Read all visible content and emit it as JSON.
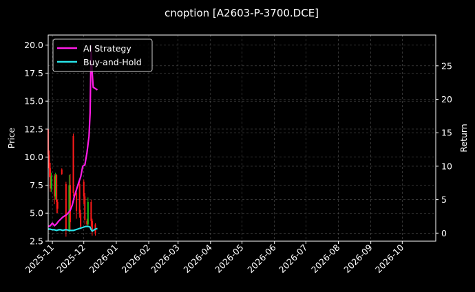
{
  "chart_data": {
    "type": "line",
    "title": "cnoption [A2603-P-3700.DCE]",
    "ylabel": "Price",
    "y2label": "Return",
    "ylim": [
      2.5,
      20.9
    ],
    "y2lim": [
      -1.2,
      29.6
    ],
    "xlim": [
      "2025-10-28",
      "2026-11-02"
    ],
    "yticks": [
      "2.5",
      "5.0",
      "7.5",
      "10.0",
      "12.5",
      "15.0",
      "17.5",
      "20.0"
    ],
    "y2ticks": [
      "0",
      "5",
      "10",
      "15",
      "20",
      "25"
    ],
    "xticks": [
      "2025-11",
      "2025-12",
      "2026-01",
      "2026-02",
      "2026-03",
      "2026-04",
      "2026-05",
      "2026-06",
      "2026-07",
      "2026-08",
      "2026-09",
      "2026-10"
    ],
    "grid": true,
    "legend_position": "top-left",
    "colors": {
      "background": "#000000",
      "ai_strategy": "#ff1ce6",
      "buy_and_hold": "#28e4e9",
      "candle_up": "#17c917",
      "candle_down": "#ff1a1a",
      "grid": "#555555"
    },
    "candles": [
      {
        "date": "2025-10-28",
        "open": 12.5,
        "close": 10.2,
        "high": 12.6,
        "low": 9.8
      },
      {
        "date": "2025-10-29",
        "open": 10.2,
        "close": 9.0,
        "high": 10.6,
        "low": 8.2
      },
      {
        "date": "2025-10-30",
        "open": 9.0,
        "close": 7.2,
        "high": 9.5,
        "low": 6.9
      },
      {
        "date": "2025-10-31",
        "open": 7.2,
        "close": 8.3,
        "high": 8.6,
        "low": 6.9
      },
      {
        "date": "2025-11-03",
        "open": 8.3,
        "close": 6.5,
        "high": 8.5,
        "low": 5.8
      },
      {
        "date": "2025-11-04",
        "open": 6.5,
        "close": 8.4,
        "high": 8.6,
        "low": 6.2
      },
      {
        "date": "2025-11-05",
        "open": 8.4,
        "close": 6.0,
        "high": 8.5,
        "low": 5.0
      },
      {
        "date": "2025-11-06",
        "open": 6.0,
        "close": 5.4,
        "high": 6.2,
        "low": 5.0
      },
      {
        "date": "2025-11-10",
        "open": 8.9,
        "close": 8.5,
        "high": 9.0,
        "low": 8.4
      },
      {
        "date": "2025-11-14",
        "open": 7.6,
        "close": 3.4,
        "high": 7.8,
        "low": 2.9
      },
      {
        "date": "2025-11-17",
        "open": 3.4,
        "close": 7.5,
        "high": 8.4,
        "low": 3.3
      },
      {
        "date": "2025-11-18",
        "open": 7.5,
        "close": 4.2,
        "high": 8.5,
        "low": 3.5
      },
      {
        "date": "2025-11-21",
        "open": 11.9,
        "close": 6.8,
        "high": 12.1,
        "low": 6.5
      },
      {
        "date": "2025-11-24",
        "open": 6.8,
        "close": 5.2,
        "high": 7.0,
        "low": 4.5
      },
      {
        "date": "2025-11-27",
        "open": 7.6,
        "close": 5.0,
        "high": 8.0,
        "low": 4.6
      },
      {
        "date": "2025-11-28",
        "open": 5.0,
        "close": 3.8,
        "high": 5.3,
        "low": 3.6
      },
      {
        "date": "2025-12-01",
        "open": 7.8,
        "close": 6.5,
        "high": 8.0,
        "low": 5.8
      },
      {
        "date": "2025-12-02",
        "open": 6.5,
        "close": 4.4,
        "high": 6.8,
        "low": 4.0
      },
      {
        "date": "2025-12-04",
        "open": 4.3,
        "close": 4.0,
        "high": 4.5,
        "low": 3.9
      },
      {
        "date": "2025-12-05",
        "open": 4.0,
        "close": 6.0,
        "high": 6.4,
        "low": 3.9
      },
      {
        "date": "2025-12-08",
        "open": 6.0,
        "close": 4.3,
        "high": 6.2,
        "low": 3.8
      },
      {
        "date": "2025-12-09",
        "open": 4.3,
        "close": 3.3,
        "high": 4.5,
        "low": 3.0
      },
      {
        "date": "2025-12-12",
        "open": 4.0,
        "close": 3.2,
        "high": 4.1,
        "low": 3.0
      }
    ],
    "series": [
      {
        "name": "AI Strategy",
        "color": "#ff1ce6",
        "x": [
          "2025-10-28",
          "2025-10-30",
          "2025-11-01",
          "2025-11-03",
          "2025-11-05",
          "2025-11-07",
          "2025-11-09",
          "2025-11-11",
          "2025-11-13",
          "2025-11-15",
          "2025-11-16",
          "2025-11-18",
          "2025-11-20",
          "2025-11-22",
          "2025-11-24",
          "2025-11-26",
          "2025-11-28",
          "2025-11-30",
          "2025-12-02",
          "2025-12-04",
          "2025-12-06",
          "2025-12-07",
          "2025-12-08",
          "2025-12-09",
          "2025-12-10",
          "2025-12-12",
          "2025-12-14"
        ],
        "values": [
          1.0,
          1.1,
          1.5,
          1.1,
          1.4,
          1.8,
          2.1,
          2.4,
          2.6,
          2.8,
          3.0,
          3.4,
          4.2,
          5.5,
          6.5,
          7.5,
          8.4,
          10.0,
          10.2,
          12.0,
          14.5,
          18.0,
          28.0,
          24.0,
          21.8,
          21.6,
          21.4
        ]
      },
      {
        "name": "Buy-and-Hold",
        "color": "#28e4e9",
        "x": [
          "2025-10-28",
          "2025-10-30",
          "2025-11-01",
          "2025-11-03",
          "2025-11-05",
          "2025-11-07",
          "2025-11-09",
          "2025-11-11",
          "2025-11-13",
          "2025-11-15",
          "2025-11-17",
          "2025-11-19",
          "2025-11-21",
          "2025-11-23",
          "2025-11-25",
          "2025-11-27",
          "2025-11-29",
          "2025-12-01",
          "2025-12-03",
          "2025-12-05",
          "2025-12-07",
          "2025-12-08",
          "2025-12-09",
          "2025-12-10",
          "2025-12-12",
          "2025-12-14"
        ],
        "values": [
          0.6,
          0.6,
          0.5,
          0.5,
          0.4,
          0.5,
          0.5,
          0.4,
          0.5,
          0.5,
          0.4,
          0.4,
          0.4,
          0.5,
          0.6,
          0.7,
          0.8,
          0.9,
          1.0,
          1.0,
          0.9,
          0.5,
          0.3,
          0.4,
          0.6,
          0.7
        ]
      }
    ]
  }
}
